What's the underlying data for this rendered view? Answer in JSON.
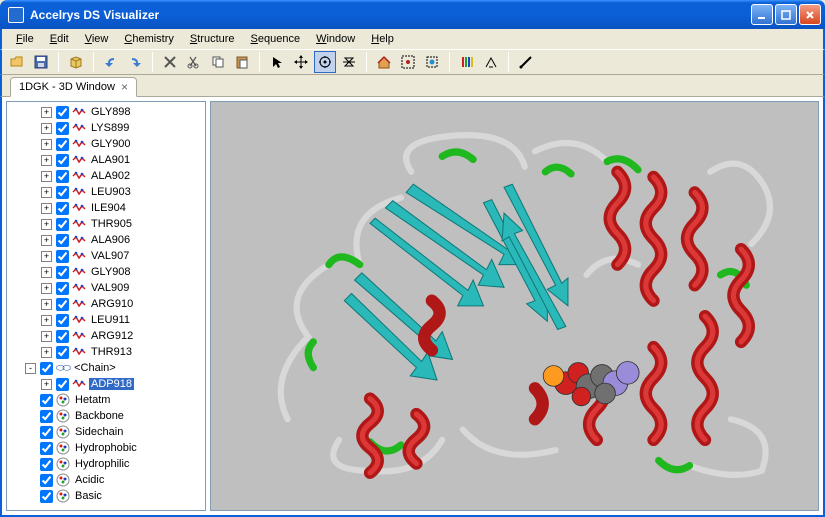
{
  "window": {
    "title": "Accelrys DS Visualizer"
  },
  "menu": [
    "File",
    "Edit",
    "View",
    "Chemistry",
    "Structure",
    "Sequence",
    "Window",
    "Help"
  ],
  "tab": {
    "label": "1DGK - 3D Window"
  },
  "residues": [
    {
      "exp": "+",
      "name": "GLY898"
    },
    {
      "exp": "+",
      "name": "LYS899"
    },
    {
      "exp": "+",
      "name": "GLY900"
    },
    {
      "exp": "+",
      "name": "ALA901"
    },
    {
      "exp": "+",
      "name": "ALA902"
    },
    {
      "exp": "+",
      "name": "LEU903"
    },
    {
      "exp": "+",
      "name": "ILE904"
    },
    {
      "exp": "+",
      "name": "THR905"
    },
    {
      "exp": "+",
      "name": "ALA906"
    },
    {
      "exp": "+",
      "name": "VAL907"
    },
    {
      "exp": "+",
      "name": "GLY908"
    },
    {
      "exp": "+",
      "name": "VAL909"
    },
    {
      "exp": "+",
      "name": "ARG910"
    },
    {
      "exp": "+",
      "name": "LEU911"
    },
    {
      "exp": "+",
      "name": "ARG912"
    },
    {
      "exp": "+",
      "name": "THR913"
    }
  ],
  "chain": {
    "exp": "-",
    "label": "<Chain>",
    "sub": {
      "exp": "+",
      "label": "ADP918",
      "selected": true
    }
  },
  "groups": [
    {
      "label": "Hetatm"
    },
    {
      "label": "Backbone"
    },
    {
      "label": "Sidechain"
    },
    {
      "label": "Hydrophobic"
    },
    {
      "label": "Hydrophilic"
    },
    {
      "label": "Acidic"
    },
    {
      "label": "Basic"
    }
  ],
  "viewport": {
    "background_color": "#bfbfbf",
    "structure_type": "protein-cartoon",
    "colors": {
      "helix": "#b01818",
      "sheet": "#2bb8b8",
      "loop": "#d8d8d8",
      "turn": "#1fb81f",
      "ligand_atoms": [
        "#d02020",
        "#ff9a20",
        "#707070",
        "#9a8cd8"
      ]
    }
  }
}
